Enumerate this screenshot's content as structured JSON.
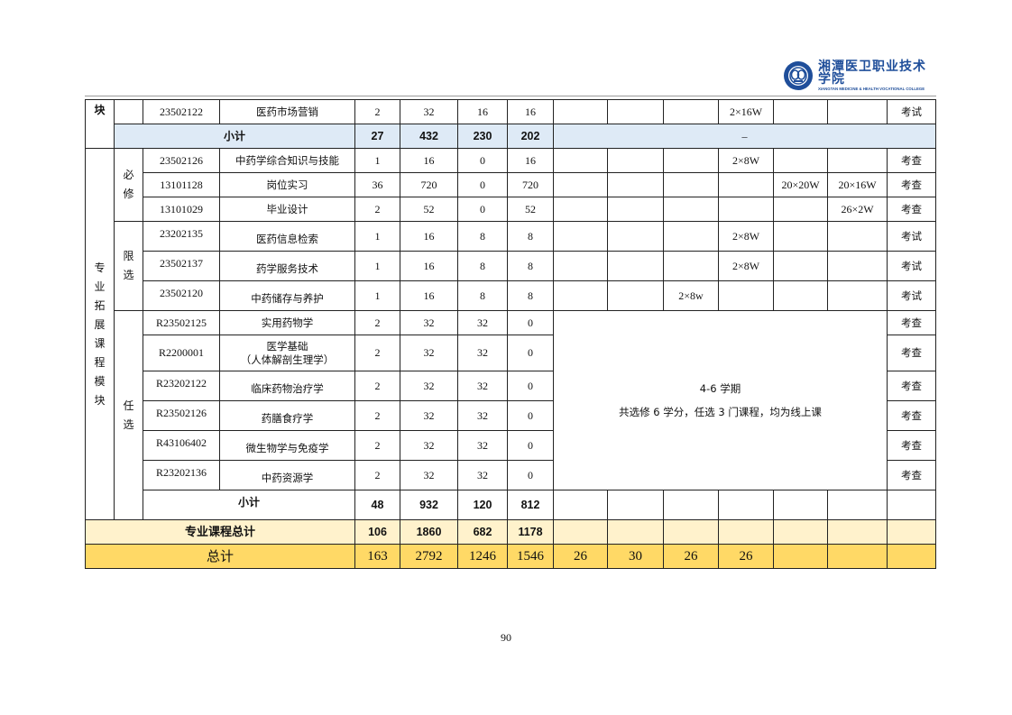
{
  "header": {
    "logo_text_cn": "湘潭医卫职业技术学院",
    "logo_text_en": "XIANGTAN MEDICINE & HEALTH VOCATIONAL COLLEGE",
    "logo_color": "#1f4e9a"
  },
  "table": {
    "prev_module_tail": "块",
    "prev_rows": [
      {
        "code": "23502122",
        "name": "医药市场营销",
        "credits": "2",
        "total": "32",
        "theory": "16",
        "practice": "16",
        "sem": [
          "",
          "",
          "",
          "2×16W",
          "",
          ""
        ],
        "exam": "考试"
      }
    ],
    "prev_subtotal": {
      "label": "小计",
      "credits": "27",
      "total": "432",
      "theory": "230",
      "practice": "202",
      "note": "–"
    },
    "module_label": "专业拓展课程模块",
    "groups": [
      {
        "label": "必修",
        "rows": [
          {
            "code": "23502126",
            "name": "中药学综合知识与技能",
            "credits": "1",
            "total": "16",
            "theory": "0",
            "practice": "16",
            "sem": [
              "",
              "",
              "",
              "2×8W",
              "",
              ""
            ],
            "exam": "考查"
          },
          {
            "code": "13101128",
            "name": "岗位实习",
            "credits": "36",
            "total": "720",
            "theory": "0",
            "practice": "720",
            "sem": [
              "",
              "",
              "",
              "",
              "20×20W",
              "20×16W"
            ],
            "exam": "考查"
          },
          {
            "code": "13101029",
            "name": "毕业设计",
            "credits": "2",
            "total": "52",
            "theory": "0",
            "practice": "52",
            "sem": [
              "",
              "",
              "",
              "",
              "",
              "26×2W"
            ],
            "exam": "考查"
          }
        ]
      },
      {
        "label": "限选",
        "rows": [
          {
            "code": "23202135",
            "name": "医药信息检索",
            "credits": "1",
            "total": "16",
            "theory": "8",
            "practice": "8",
            "sem": [
              "",
              "",
              "",
              "2×8W",
              "",
              ""
            ],
            "exam": "考试"
          },
          {
            "code": "23502137",
            "name": "药学服务技术",
            "credits": "1",
            "total": "16",
            "theory": "8",
            "practice": "8",
            "sem": [
              "",
              "",
              "",
              "2×8W",
              "",
              ""
            ],
            "exam": "考试"
          },
          {
            "code": "23502120",
            "name": "中药储存与养护",
            "credits": "1",
            "total": "16",
            "theory": "8",
            "practice": "8",
            "sem": [
              "",
              "",
              "2×8w",
              "",
              "",
              ""
            ],
            "exam": "考试"
          }
        ]
      },
      {
        "label": "任选",
        "note_line1": "4-6 学期",
        "note_line2": "共选修 6 学分，任选 3 门课程，均为线上课",
        "rows": [
          {
            "code": "R23502125",
            "name": "实用药物学",
            "credits": "2",
            "total": "32",
            "theory": "32",
            "practice": "0",
            "exam": "考查"
          },
          {
            "code": "R2200001",
            "name": "医学基础",
            "name2": "（人体解剖生理学）",
            "credits": "2",
            "total": "32",
            "theory": "32",
            "practice": "0",
            "exam": "考查"
          },
          {
            "code": "R23202122",
            "name": "临床药物治疗学",
            "credits": "2",
            "total": "32",
            "theory": "32",
            "practice": "0",
            "exam": "考查"
          },
          {
            "code": "R23502126",
            "name": "药膳食疗学",
            "credits": "2",
            "total": "32",
            "theory": "32",
            "practice": "0",
            "exam": "考查"
          },
          {
            "code": "R43106402",
            "name": "微生物学与免疫学",
            "credits": "2",
            "total": "32",
            "theory": "32",
            "practice": "0",
            "exam": "考查"
          },
          {
            "code": "R23202136",
            "name": "中药资源学",
            "credits": "2",
            "total": "32",
            "theory": "32",
            "practice": "0",
            "exam": "考查"
          }
        ]
      }
    ],
    "module_subtotal": {
      "label": "小计",
      "credits": "48",
      "total": "932",
      "theory": "120",
      "practice": "812"
    },
    "professional_total": {
      "label": "专业课程总计",
      "credits": "106",
      "total": "1860",
      "theory": "682",
      "practice": "1178"
    },
    "grand_total": {
      "label": "总计",
      "credits": "163",
      "total": "2792",
      "theory": "1246",
      "practice": "1546",
      "sem": [
        "26",
        "30",
        "26",
        "26",
        "",
        ""
      ]
    },
    "colors": {
      "subtotal_bg": "#deeaf6",
      "professional_total_bg": "#fff2cc",
      "grand_total_bg": "#ffd966"
    }
  },
  "footer": {
    "page_number": "90"
  }
}
